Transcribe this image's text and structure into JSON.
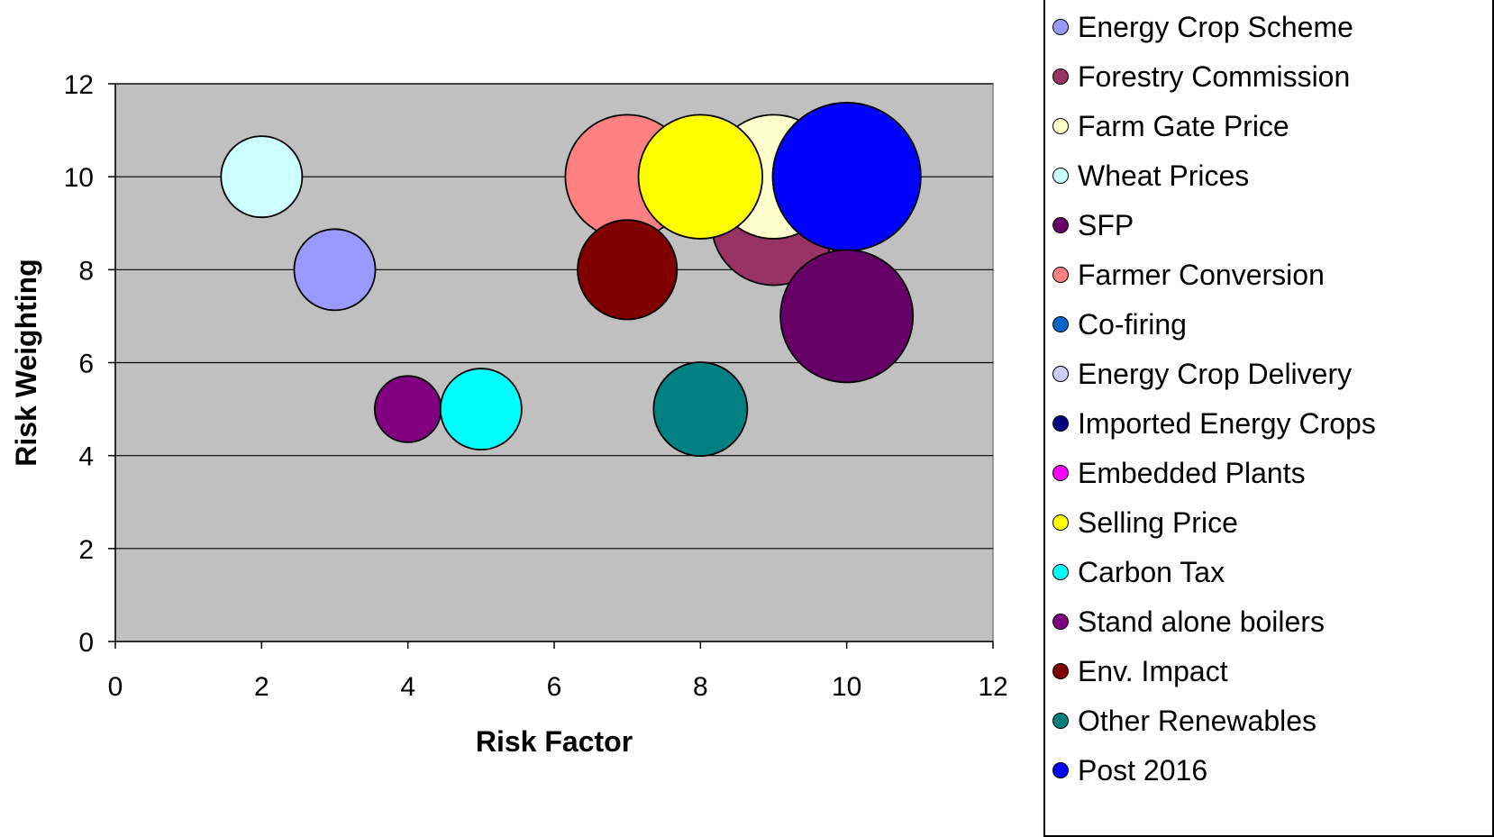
{
  "chart_data": {
    "type": "bubble",
    "title": "",
    "xlabel": "Risk Factor",
    "ylabel": "Risk Weighting",
    "xlim": [
      0,
      12
    ],
    "ylim": [
      0,
      12
    ],
    "x_ticks": [
      "0",
      "2",
      "4",
      "6",
      "8",
      "10",
      "12"
    ],
    "y_ticks": [
      "0",
      "2",
      "4",
      "6",
      "8",
      "10",
      "12"
    ],
    "grid": "horizontal",
    "plot_background": "#c0c0c0",
    "legend_position": "right",
    "series": [
      {
        "name": "Energy Crop Scheme",
        "color": "#9999ff",
        "points": [
          {
            "x": 3,
            "y": 8,
            "size": 3
          }
        ]
      },
      {
        "name": "Forestry Commission",
        "color": "#993366",
        "points": [
          {
            "x": 9,
            "y": 9,
            "size": 7
          }
        ]
      },
      {
        "name": "Farm Gate Price",
        "color": "#ffffcc",
        "points": [
          {
            "x": 9,
            "y": 10,
            "size": 7
          }
        ]
      },
      {
        "name": "Wheat Prices",
        "color": "#ccffff",
        "points": [
          {
            "x": 2,
            "y": 10,
            "size": 3
          }
        ]
      },
      {
        "name": "SFP",
        "color": "#660066",
        "points": [
          {
            "x": 10,
            "y": 7,
            "size": 8
          }
        ]
      },
      {
        "name": "Farmer Conversion",
        "color": "#ff8080",
        "points": [
          {
            "x": 7,
            "y": 10,
            "size": 7
          }
        ]
      },
      {
        "name": "Co-firing",
        "color": "#0066cc",
        "points": []
      },
      {
        "name": "Energy Crop Delivery",
        "color": "#ccccff",
        "points": []
      },
      {
        "name": "Imported Energy Crops",
        "color": "#000080",
        "points": []
      },
      {
        "name": "Embedded Plants",
        "color": "#ff00ff",
        "points": []
      },
      {
        "name": "Selling Price",
        "color": "#ffff00",
        "points": [
          {
            "x": 8,
            "y": 10,
            "size": 7
          }
        ]
      },
      {
        "name": "Carbon Tax",
        "color": "#00ffff",
        "points": [
          {
            "x": 5,
            "y": 5,
            "size": 3
          }
        ]
      },
      {
        "name": "Stand alone boilers",
        "color": "#800080",
        "points": [
          {
            "x": 4,
            "y": 5,
            "size": 2
          }
        ]
      },
      {
        "name": "Env. Impact",
        "color": "#800000",
        "points": [
          {
            "x": 7,
            "y": 8,
            "size": 4.5
          }
        ]
      },
      {
        "name": "Other Renewables",
        "color": "#008080",
        "points": [
          {
            "x": 8,
            "y": 5,
            "size": 4
          }
        ]
      },
      {
        "name": "Post 2016",
        "color": "#0000ff",
        "points": [
          {
            "x": 10,
            "y": 10,
            "size": 10
          }
        ]
      }
    ]
  }
}
